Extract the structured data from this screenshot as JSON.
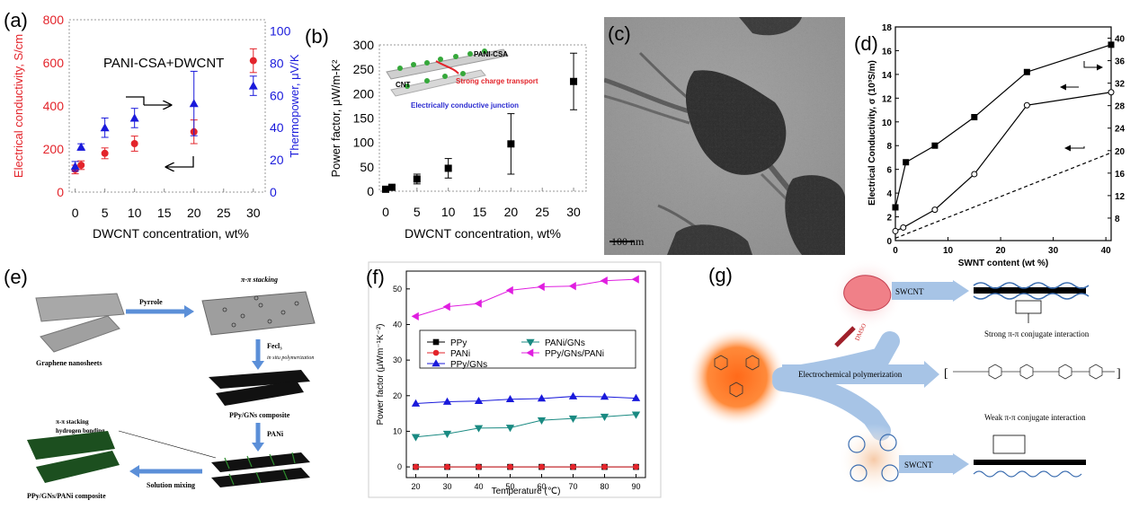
{
  "panels": {
    "a": {
      "letter": "(a)",
      "inset_label": "PANI-CSA+DWCNT",
      "xlabel": "DWCNT concentration, wt%",
      "ylabel_left": "Electrical conductivity, S/cm",
      "ylabel_right": "Thermopower, μV/K",
      "x_ticks": [
        "0",
        "5",
        "10",
        "15",
        "20",
        "25",
        "30"
      ],
      "y_ticks_left": [
        "0",
        "200",
        "400",
        "600",
        "800"
      ],
      "y_ticks_right": [
        "0",
        "20",
        "40",
        "60",
        "80",
        "100"
      ],
      "colors": {
        "conductivity": "#e3242b",
        "thermopower": "#1a1adb"
      }
    },
    "b": {
      "letter": "(b)",
      "xlabel": "DWCNT concentration, wt%",
      "ylabel": "Power factor, μW/m-K²",
      "x_ticks": [
        "0",
        "5",
        "10",
        "15",
        "20",
        "25",
        "30"
      ],
      "y_ticks": [
        "0",
        "50",
        "100",
        "150",
        "200",
        "250",
        "300"
      ],
      "inset": {
        "pani_label": "PANI-CSA",
        "cnt_label": "CNT",
        "strong_transport": "Strong charge transport",
        "junction": "Electrically conductive junction"
      }
    },
    "c": {
      "letter": "(c)",
      "scale_bar": "100 nm"
    },
    "d": {
      "letter": "(d)",
      "xlabel": "SWNT content (wt %)",
      "ylabel": "Electrical Conductivity, σ (10³S/m)",
      "x_ticks": [
        "0",
        "10",
        "20",
        "30",
        "40"
      ],
      "y_ticks_left": [
        "0",
        "2",
        "4",
        "6",
        "8",
        "10",
        "12",
        "14",
        "16",
        "18"
      ],
      "y_ticks_right": [
        "8",
        "12",
        "16",
        "20",
        "24",
        "28",
        "32",
        "36",
        "40"
      ]
    },
    "e": {
      "letter": "(e)",
      "pyrrole": "Pyrrole",
      "pi_stacking": "π-π stacking",
      "fecl3": "Fecl₃",
      "in_situ": "in situ polymerization",
      "graphene": "Graphene nanosheets",
      "ppy_gns": "PPy/GNs composite",
      "pani": "PANi",
      "stacking_hbond_1": "π-π stacking",
      "stacking_hbond_2": "hydrogen bonding",
      "solution_mixing": "Solution mixing",
      "final": "PPy/GNs/PANi composite"
    },
    "f": {
      "letter": "(f)",
      "xlabel": "Temperature (℃)",
      "ylabel": "Power factor (μWm⁻¹K⁻²)",
      "x_ticks": [
        "20",
        "30",
        "40",
        "50",
        "60",
        "70",
        "80",
        "90"
      ],
      "y_ticks": [
        "0",
        "10",
        "20",
        "30",
        "40",
        "50"
      ]
    },
    "g": {
      "letter": "(g)",
      "swcnt_top": "SWCNT",
      "swcnt_bottom": "SWCNT",
      "strong": "Strong π-π conjugate interaction",
      "weak": "Weak π-π conjugate interaction",
      "electrochem": "Electrochemical polymerization",
      "dmso": "DMSO"
    }
  },
  "chart_data": [
    {
      "panel": "a",
      "type": "scatter",
      "xlabel": "DWCNT concentration, wt%",
      "ylabel": "Electrical conductivity, S/cm",
      "ylabel_right": "Thermopower, μV/K",
      "xlim": [
        -1,
        32
      ],
      "ylim": [
        0,
        800
      ],
      "ylim_right": [
        0,
        107
      ],
      "series": [
        {
          "name": "Electrical conductivity",
          "axis": "left",
          "x": [
            0,
            1,
            5,
            10,
            20,
            30
          ],
          "y": [
            105,
            125,
            180,
            225,
            280,
            610
          ],
          "err": [
            20,
            20,
            25,
            35,
            55,
            55
          ]
        },
        {
          "name": "Thermopower",
          "axis": "right",
          "x": [
            0,
            1,
            5,
            10,
            20,
            30
          ],
          "y": [
            16,
            28,
            40,
            46,
            55,
            66
          ],
          "err": [
            3,
            2,
            6,
            6,
            20,
            6
          ]
        }
      ]
    },
    {
      "panel": "b",
      "type": "scatter",
      "xlabel": "DWCNT concentration, wt%",
      "ylabel": "Power factor, μW/m-K²",
      "xlim": [
        -1,
        32
      ],
      "ylim": [
        0,
        300
      ],
      "series": [
        {
          "name": "Power factor",
          "x": [
            0,
            1,
            5,
            10,
            20,
            30
          ],
          "y": [
            4,
            8,
            25,
            47,
            97,
            225
          ],
          "err": [
            3,
            4,
            10,
            20,
            62,
            58
          ]
        }
      ]
    },
    {
      "panel": "d",
      "type": "line",
      "xlabel": "SWNT content (wt %)",
      "ylabel": "Electrical Conductivity, σ (10³S/m)",
      "xlim": [
        0,
        41
      ],
      "ylim": [
        0,
        18
      ],
      "ylim_right": [
        4,
        42
      ],
      "series": [
        {
          "name": "filled squares",
          "axis": "left",
          "marker": "square",
          "x": [
            0,
            2,
            7.5,
            15,
            25,
            41
          ],
          "y": [
            2.8,
            6.6,
            8.0,
            10.4,
            14.2,
            16.5
          ]
        },
        {
          "name": "open circles",
          "axis": "left",
          "marker": "circle",
          "x": [
            0,
            1.5,
            7.5,
            15,
            25,
            41
          ],
          "y": [
            0.8,
            1.1,
            2.6,
            5.6,
            11.4,
            12.5
          ]
        },
        {
          "name": "dashed",
          "axis": "left",
          "marker": "none",
          "x": [
            0,
            41
          ],
          "y": [
            0.2,
            7.4
          ]
        }
      ]
    },
    {
      "panel": "f",
      "type": "line",
      "xlabel": "Temperature (℃)",
      "ylabel": "Power factor (μWm⁻¹K⁻²)",
      "xlim": [
        17,
        93
      ],
      "ylim": [
        -3,
        55
      ],
      "legend_position": "center",
      "series": [
        {
          "name": "PPy",
          "color": "#000000",
          "marker": "square",
          "x": [
            20,
            30,
            40,
            50,
            60,
            70,
            80,
            90
          ],
          "y": [
            0,
            0,
            0,
            0,
            0,
            0,
            0,
            0
          ]
        },
        {
          "name": "PANi",
          "color": "#e3242b",
          "marker": "circle",
          "x": [
            20,
            30,
            40,
            50,
            60,
            70,
            80,
            90
          ],
          "y": [
            0,
            0,
            0,
            0,
            0,
            0,
            0,
            0
          ]
        },
        {
          "name": "PPy/GNs",
          "color": "#1a1adb",
          "marker": "triangle-up",
          "x": [
            20,
            30,
            40,
            50,
            60,
            70,
            80,
            90
          ],
          "y": [
            17.8,
            18.3,
            18.5,
            19.0,
            19.2,
            19.8,
            19.7,
            19.3
          ]
        },
        {
          "name": "PANi/GNs",
          "color": "#1a8a82",
          "marker": "triangle-down",
          "x": [
            20,
            30,
            40,
            50,
            60,
            70,
            80,
            90
          ],
          "y": [
            8.4,
            9.3,
            10.9,
            11.0,
            13.1,
            13.6,
            14.1,
            14.7
          ]
        },
        {
          "name": "PPy/GNs/PANi",
          "color": "#e01ee0",
          "marker": "triangle-left",
          "x": [
            20,
            30,
            40,
            50,
            60,
            70,
            80,
            90
          ],
          "y": [
            42.3,
            45.0,
            45.9,
            49.6,
            50.6,
            50.8,
            52.3,
            52.7
          ]
        }
      ]
    }
  ]
}
